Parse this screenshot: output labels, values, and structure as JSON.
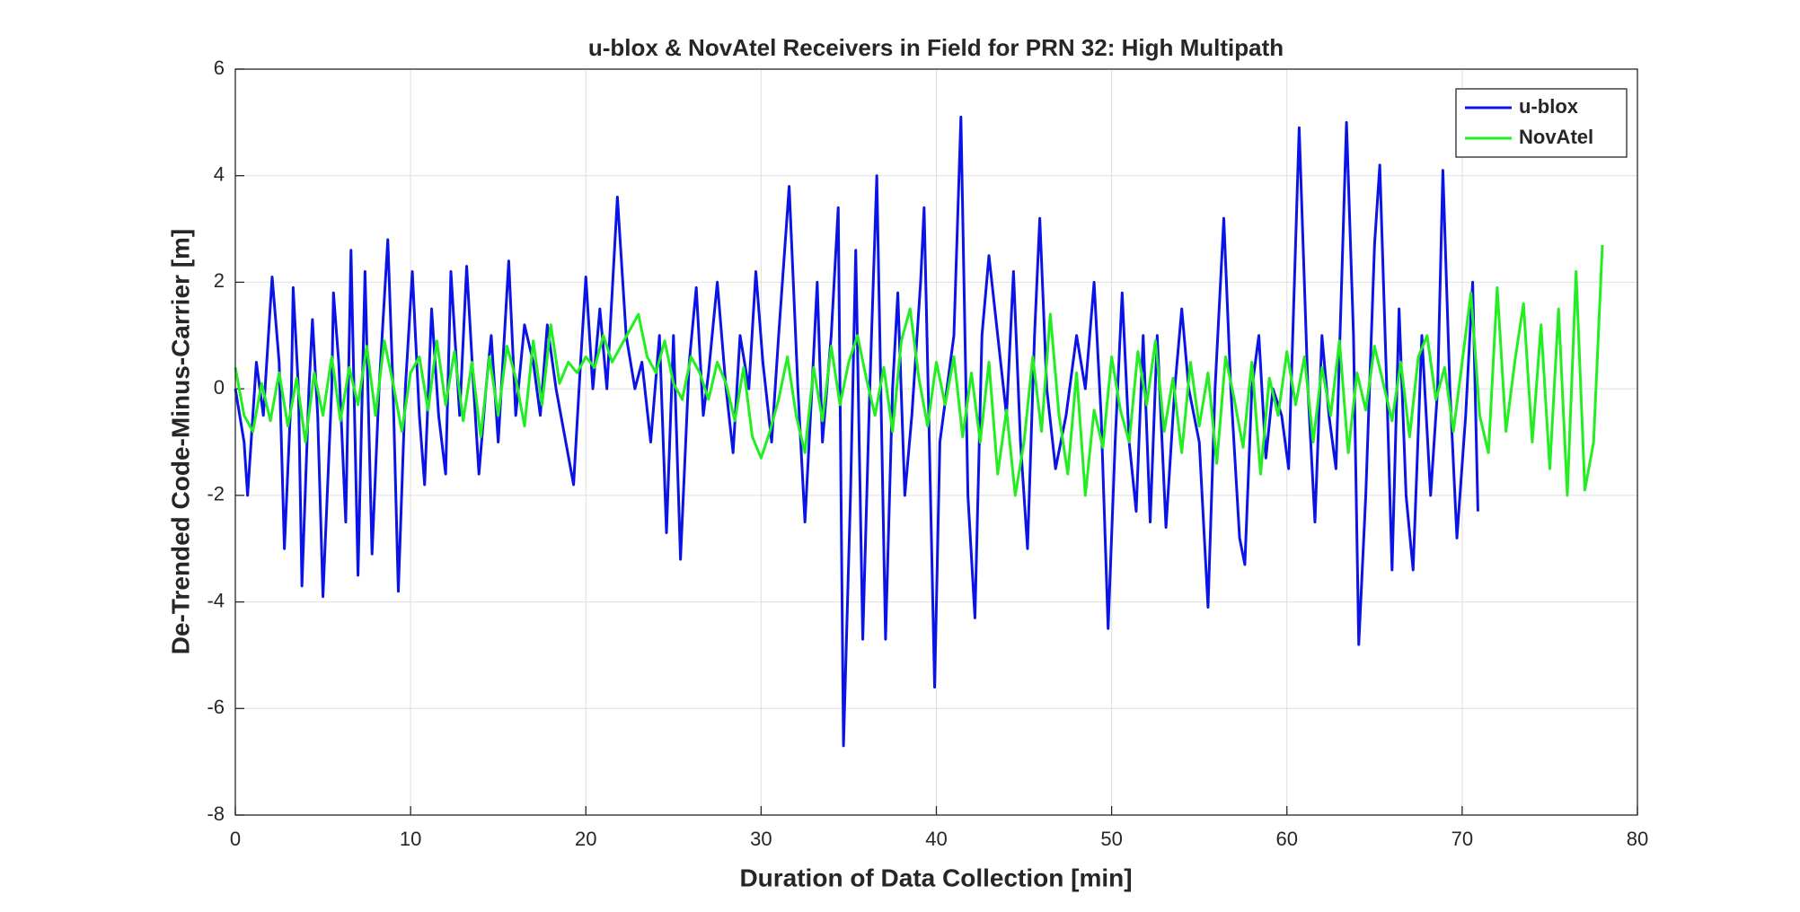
{
  "chart_data": {
    "type": "line",
    "title": "u-blox & NovAtel Receivers in Field for PRN 32: High Multipath",
    "x_label": "Duration of Data Collection [min]",
    "y_label": "De-Trended Code-Minus-Carrier [m]",
    "xlim": [
      0,
      80
    ],
    "xticks": [
      0,
      10,
      20,
      30,
      40,
      50,
      60,
      70,
      80
    ],
    "ylim": [
      -8,
      6
    ],
    "yticks": [
      -8,
      -6,
      -4,
      -2,
      0,
      2,
      4,
      6
    ],
    "grid": true,
    "legend": "northeast",
    "series": [
      {
        "name": "u-blox",
        "color": "#0a14e6",
        "x": [
          0,
          0.5,
          0.7,
          1.2,
          1.6,
          2.1,
          2.5,
          2.8,
          3.2,
          3.3,
          3.6,
          3.8,
          4.2,
          4.4,
          4.7,
          5,
          5.5,
          5.6,
          5.9,
          6.3,
          6.6,
          7,
          7.4,
          7.8,
          8.2,
          8.7,
          9,
          9.3,
          9.7,
          10.1,
          10.5,
          10.8,
          11.2,
          11.6,
          12,
          12.3,
          12.8,
          13.2,
          13.6,
          13.9,
          14.3,
          14.6,
          15,
          15.6,
          16,
          16.5,
          17,
          17.4,
          17.8,
          18.3,
          19.3,
          19.7,
          20,
          20.4,
          20.8,
          21.2,
          21.8,
          22.3,
          22.8,
          23.2,
          23.7,
          24.2,
          24.6,
          25,
          25.4,
          25.9,
          26.3,
          26.7,
          27,
          27.5,
          28,
          28.4,
          28.8,
          29.3,
          29.7,
          30.1,
          30.6,
          31,
          31.6,
          32.1,
          32.5,
          32.9,
          33.2,
          33.5,
          34,
          34.4,
          34.7,
          35.1,
          35.4,
          35.8,
          36.2,
          36.6,
          37.1,
          37.5,
          37.8,
          38.2,
          38.6,
          39.1,
          39.3,
          39.6,
          39.9,
          40.2,
          40.6,
          41,
          41.4,
          41.8,
          42.2,
          42.6,
          43,
          43.5,
          44,
          44.4,
          44.8,
          45.2,
          45.6,
          45.9,
          46.3,
          46.8,
          47.4,
          48,
          48.5,
          49,
          49.4,
          49.8,
          50.2,
          50.6,
          51,
          51.4,
          51.8,
          52.2,
          52.6,
          53.1,
          53.6,
          54,
          54.4,
          55,
          55.5,
          55.9,
          56.4,
          56.8,
          57.3,
          57.6,
          58,
          58.4,
          58.8,
          59.2,
          59.7,
          60.1,
          60.7,
          61.2,
          61.6,
          62,
          62.4,
          62.8,
          63.4,
          63.8,
          64.1,
          64.5,
          65,
          65.3,
          65.7,
          66,
          66.4,
          66.8,
          67.2,
          67.7,
          68.2,
          68.6,
          68.9,
          69.3,
          69.7,
          70.2,
          70.6,
          70.9
        ],
        "values": [
          0,
          -1,
          -2,
          0.5,
          -0.5,
          2.1,
          0.5,
          -3,
          0,
          1.9,
          0,
          -3.7,
          0,
          1.3,
          -0.5,
          -3.9,
          0,
          1.8,
          0.5,
          -2.5,
          2.6,
          -3.5,
          2.2,
          -3.1,
          0,
          2.8,
          0,
          -3.8,
          0,
          2.2,
          -0.5,
          -1.8,
          1.5,
          -0.5,
          -1.6,
          2.2,
          -0.5,
          2.3,
          0,
          -1.6,
          0,
          1,
          -1,
          2.4,
          -0.5,
          1.2,
          0.5,
          -0.5,
          1.2,
          0,
          -1.8,
          0.5,
          2.1,
          0,
          1.5,
          0,
          3.6,
          1,
          0,
          0.5,
          -1,
          1,
          -2.7,
          1,
          -3.2,
          0.5,
          1.9,
          -0.5,
          0.3,
          2,
          0,
          -1.2,
          1,
          0,
          2.2,
          0.5,
          -1,
          1,
          3.8,
          0,
          -2.5,
          0,
          2,
          -1,
          1,
          3.4,
          -6.7,
          -2,
          2.6,
          -4.7,
          0,
          4,
          -4.7,
          0,
          1.8,
          -2,
          -0.5,
          2,
          3.4,
          -1,
          -5.6,
          -1,
          0,
          1,
          5.1,
          -2,
          -4.3,
          1,
          2.5,
          1,
          -0.5,
          2.2,
          -1,
          -3,
          1,
          3.2,
          0,
          -1.5,
          -0.5,
          1,
          0,
          2,
          -0.5,
          -4.5,
          -1,
          1.8,
          -1,
          -2.3,
          1,
          -2.5,
          1,
          -2.6,
          0,
          1.5,
          0,
          -1,
          -4.1,
          0,
          3.2,
          0,
          -2.8,
          -3.3,
          0,
          1,
          -1.3,
          0,
          -0.5,
          -1.5,
          4.9,
          0,
          -2.5,
          1,
          -0.5,
          -1.5,
          5,
          1,
          -4.8,
          -2,
          2.7,
          4.2,
          0,
          -3.4,
          1.5,
          -2,
          -3.4,
          1,
          -2,
          0,
          4.1,
          0,
          -2.8,
          -0.5,
          2,
          -2.3
        ]
      },
      {
        "name": "NovAtel",
        "color": "#22ee22",
        "x": [
          0,
          0.5,
          1,
          1.5,
          2,
          2.5,
          3,
          3.5,
          4,
          4.5,
          5,
          5.5,
          6,
          6.5,
          7,
          7.5,
          8,
          8.5,
          9,
          9.5,
          10,
          10.5,
          11,
          11.5,
          12,
          12.5,
          13,
          13.5,
          14,
          14.5,
          15,
          15.5,
          16,
          16.5,
          17,
          17.5,
          18,
          18.5,
          19,
          19.5,
          20,
          20.5,
          21,
          21.5,
          22,
          22.5,
          23,
          23.5,
          24,
          24.5,
          25,
          25.5,
          26,
          26.5,
          27,
          27.5,
          28,
          28.5,
          29,
          29.5,
          30,
          30.5,
          31,
          31.5,
          32,
          32.5,
          33,
          33.5,
          34,
          34.5,
          35,
          35.5,
          36,
          36.5,
          37,
          37.5,
          38,
          38.5,
          39,
          39.5,
          40,
          40.5,
          41,
          41.5,
          42,
          42.5,
          43,
          43.5,
          44,
          44.5,
          45,
          45.5,
          46,
          46.5,
          47,
          47.5,
          48,
          48.5,
          49,
          49.5,
          50,
          50.5,
          51,
          51.5,
          52,
          52.5,
          53,
          53.5,
          54,
          54.5,
          55,
          55.5,
          56,
          56.5,
          57,
          57.5,
          58,
          58.5,
          59,
          59.5,
          60,
          60.5,
          61,
          61.5,
          62,
          62.5,
          63,
          63.5,
          64,
          64.5,
          65,
          65.5,
          66,
          66.5,
          67,
          67.5,
          68,
          68.5,
          69,
          69.5,
          70,
          70.5,
          71,
          71.5,
          72,
          72.5,
          73,
          73.5,
          74,
          74.5,
          75,
          75.5,
          76,
          76.5,
          77,
          77.5,
          78
        ],
        "values": [
          0.4,
          -0.5,
          -0.8,
          0.1,
          -0.6,
          0.3,
          -0.7,
          0.2,
          -1.0,
          0.3,
          -0.5,
          0.6,
          -0.6,
          0.4,
          -0.3,
          0.8,
          -0.5,
          0.9,
          0.1,
          -0.8,
          0.3,
          0.6,
          -0.4,
          0.9,
          -0.3,
          0.7,
          -0.6,
          0.5,
          -0.9,
          0.6,
          -0.5,
          0.8,
          0.2,
          -0.7,
          0.9,
          -0.3,
          1.2,
          0.1,
          0.5,
          0.3,
          0.6,
          0.4,
          1.0,
          0.5,
          0.8,
          1.1,
          1.4,
          0.6,
          0.3,
          0.9,
          0.1,
          -0.2,
          0.6,
          0.3,
          -0.2,
          0.5,
          0.1,
          -0.6,
          0.4,
          -0.9,
          -1.3,
          -0.8,
          -0.2,
          0.6,
          -0.5,
          -1.2,
          0.4,
          -0.6,
          0.8,
          -0.3,
          0.5,
          1.0,
          0.2,
          -0.5,
          0.4,
          -0.8,
          0.9,
          1.5,
          0.2,
          -0.7,
          0.5,
          -0.3,
          0.6,
          -0.9,
          0.3,
          -1.0,
          0.5,
          -1.6,
          -0.4,
          -2.0,
          -1.0,
          0.6,
          -0.8,
          1.4,
          -0.5,
          -1.6,
          0.3,
          -2.0,
          -0.4,
          -1.1,
          0.6,
          -0.4,
          -1.0,
          0.7,
          -0.3,
          0.9,
          -0.8,
          0.2,
          -1.2,
          0.5,
          -0.7,
          0.3,
          -1.4,
          0.6,
          -0.2,
          -1.1,
          0.5,
          -1.6,
          0.2,
          -0.5,
          0.7,
          -0.3,
          0.6,
          -1.0,
          0.4,
          -0.5,
          0.9,
          -1.2,
          0.3,
          -0.4,
          0.8,
          0.1,
          -0.6,
          0.5,
          -0.9,
          0.6,
          1.0,
          -0.2,
          0.4,
          -0.8,
          0.5,
          1.8,
          -0.5,
          -1.2,
          1.9,
          -0.8,
          0.5,
          1.6,
          -1.0,
          1.2,
          -1.5,
          1.5,
          -2.0,
          2.2,
          -1.9,
          -1.0,
          2.7
        ]
      }
    ]
  }
}
